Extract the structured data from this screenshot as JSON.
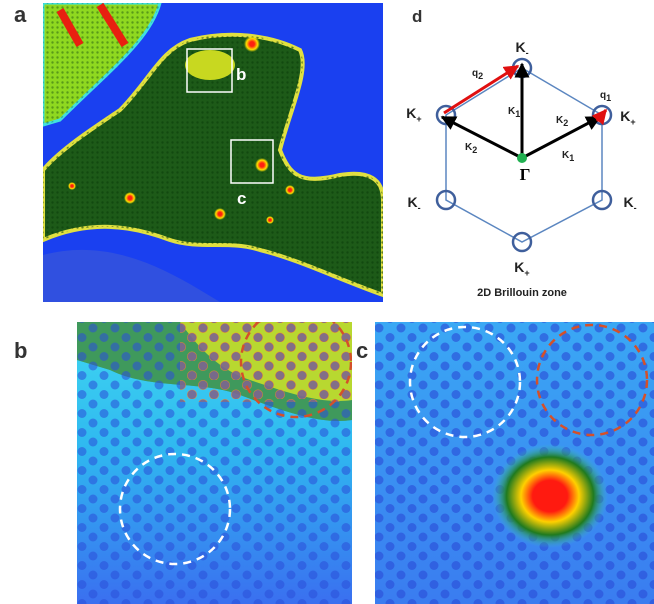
{
  "panel_labels": {
    "a": "a",
    "b": "b",
    "c": "c",
    "d": "d"
  },
  "panel_a": {
    "insets": [
      "b",
      "c"
    ]
  },
  "panel_d": {
    "points": [
      {
        "main": "K",
        "sub": "-"
      },
      {
        "main": "K",
        "sub": "+"
      },
      {
        "main": "K",
        "sub": "-"
      },
      {
        "main": "K",
        "sub": "+"
      },
      {
        "main": "K",
        "sub": "-"
      },
      {
        "main": "K",
        "sub": "+"
      }
    ],
    "vectors": [
      {
        "main": "K",
        "sub": "1"
      },
      {
        "main": "K",
        "sub": "2"
      },
      {
        "main": "K",
        "sub": "1"
      },
      {
        "main": "K",
        "sub": "2"
      },
      {
        "main": "q",
        "sub": "2"
      },
      {
        "main": "q",
        "sub": "1"
      }
    ],
    "center": "Γ",
    "caption": "2D Brillouin zone"
  }
}
